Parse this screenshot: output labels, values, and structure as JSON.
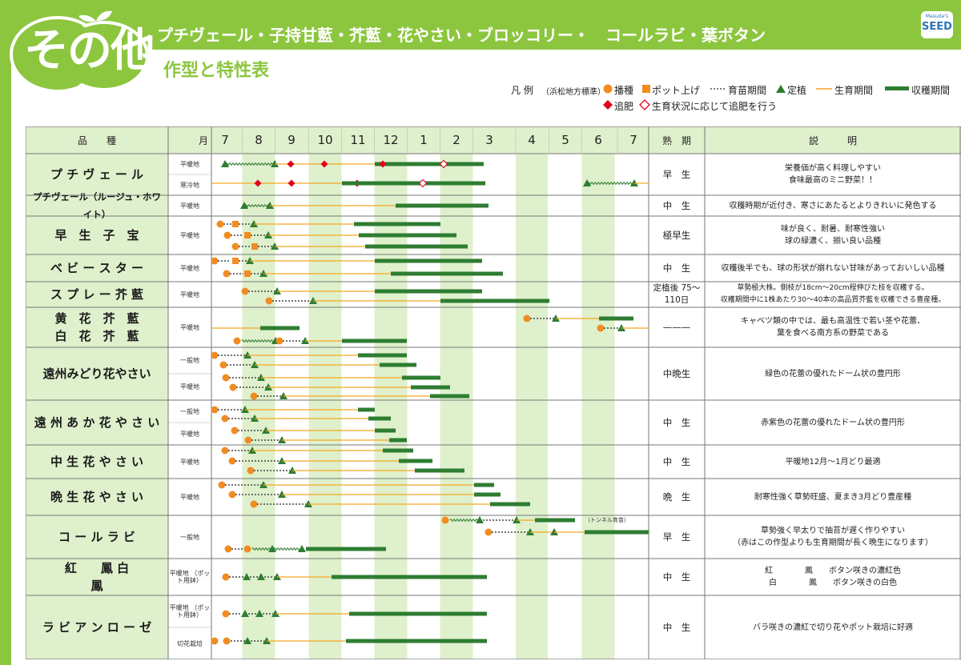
{
  "header": {
    "badge": "その他",
    "title": "プチヴェール・子持甘藍・芥藍・花やさい・ブロッコリー・　コールラビ・葉ボタン",
    "subtitle": "作型と特性表",
    "logo_top": "Masuda's",
    "logo_main": "SEED"
  },
  "legend": {
    "title": "凡 例",
    "note": "（浜松地方標準）",
    "sowing": "播種",
    "potting": "ポット上げ",
    "nursery": "育苗期間",
    "planting": "定植",
    "growth": "生育期間",
    "harvest": "収穫期間",
    "topdress": "追肥",
    "topdress_cond": "生育状況に応じて追肥を行う"
  },
  "colors": {
    "accent_green": "#8cc63f",
    "band_green": "#dff0cc",
    "harvest_green": "#2e7d32",
    "sow_orange": "#f08c21",
    "growth_orange": "#f5a623",
    "topdress_red": "#e2001a"
  },
  "table": {
    "headers": {
      "variety": "品　　種",
      "month_label": "月",
      "maturity": "熟　期",
      "description": "説　　　明"
    },
    "months": [
      "7",
      "8",
      "9",
      "10",
      "11",
      "12",
      "1",
      "2",
      "3",
      "4",
      "5",
      "6",
      "7"
    ],
    "rows": [
      {
        "name": "プ チ ヴ ェ ー ル",
        "sub": [
          "平暖地",
          "寒冷地"
        ],
        "maturity": "早　生",
        "desc": [
          "栄養価が高く料理しやすい",
          "食味最高のミニ野菜！！"
        ]
      },
      {
        "name": "プチヴェール（ルージュ・ホワイト）",
        "sub": [
          "平暖地"
        ],
        "maturity": "中　生",
        "desc": [
          "収穫時期が近付き、寒さにあたるとよりきれいに発色する"
        ]
      },
      {
        "name": "早　生　子　宝",
        "sub": [
          "平暖地"
        ],
        "maturity": "極早生",
        "desc": [
          "味が良く、耐暑、耐寒性強い",
          "球の緑濃く、揃い良い品種"
        ]
      },
      {
        "name": "ベ ビ ー ス タ ー",
        "sub": [
          "平暖地"
        ],
        "maturity": "中　生",
        "desc": [
          "収穫後半でも、球の形状が崩れない甘味があっておいしい品種"
        ]
      },
      {
        "name": "ス プ レ ー 芥 藍",
        "sub": [
          "平暖地"
        ],
        "maturity": "定植後 75〜110日",
        "desc": [
          "草勢極大株。側枝が18cm〜20cm程伸びた枝を収穫する。",
          "収穫期間中に1株あたり30〜40本の高品質芥藍を収穫できる豊産種。"
        ]
      },
      {
        "name": "黄　花　芥　藍 白　花　芥　藍",
        "sub": [
          "平暖地"
        ],
        "maturity": "———",
        "desc": [
          "キャベツ類の中では、最も高温性で若い茎や花蕾、",
          "葉を食べる南方系の野菜である"
        ]
      },
      {
        "name": "遠州みどり花やさい",
        "sub": [
          "一般地",
          "平暖地"
        ],
        "maturity": "中晩生",
        "desc": [
          "緑色の花蕾の優れたドーム状の豊円形"
        ]
      },
      {
        "name": "遠 州 あ か 花 や さ い",
        "sub": [
          "一般地",
          "平暖地"
        ],
        "maturity": "中　生",
        "desc": [
          "赤紫色の花蕾の優れたドーム状の豊円形"
        ]
      },
      {
        "name": "中 生 花 や さ い",
        "sub": [
          "平暖地"
        ],
        "maturity": "中　生",
        "desc": [
          "平暖地12月〜1月どり最適"
        ]
      },
      {
        "name": "晩 生 花 や さ い",
        "sub": [
          "平暖地"
        ],
        "maturity": "晩　生",
        "desc": [
          "耐寒性強く草勢旺盛、夏まき3月どり豊産種"
        ]
      },
      {
        "name": "コ ー ル ラ ビ",
        "sub": [
          "一般地"
        ],
        "maturity": "早　生",
        "desc": [
          "草勢強く早太りで抽苔が遅く作りやすい",
          "（赤はこの作型よりも生育期間が長く晩生になります）"
        ],
        "note": "（トンネル育苗）"
      },
      {
        "name": "紅　　鳳 白　　鳳",
        "sub": [
          "平暖地 （ポット用鉢）"
        ],
        "maturity": "中　生",
        "desc": [
          "紅　　　　鳳　　ボタン咲きの濃紅色",
          "白　　　　鳳　　ボタン咲きの白色"
        ]
      },
      {
        "name": "ラ ビ ア ン ロ ー ゼ",
        "sub": [
          "平暖地 （ポット用鉢）",
          "切花栽培"
        ],
        "maturity": "中　生",
        "desc": [
          "バラ咲きの濃紅で切り花やポット栽培に好適"
        ]
      }
    ]
  }
}
